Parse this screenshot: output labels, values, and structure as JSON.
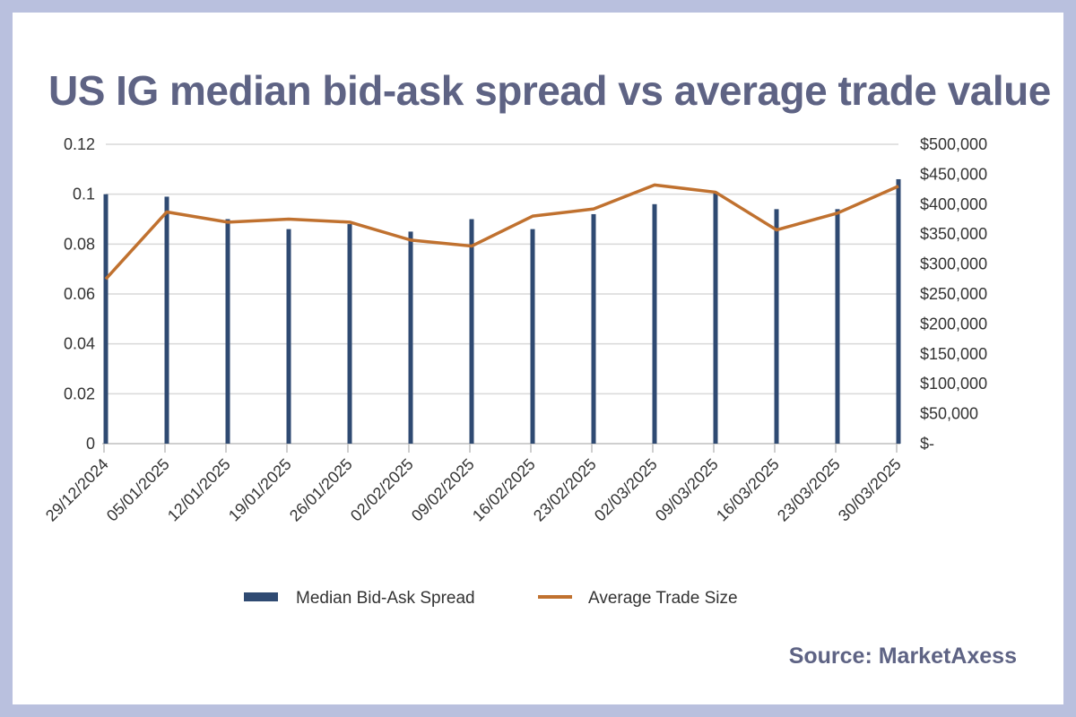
{
  "title": "US IG median bid-ask spread vs average trade value",
  "source": "Source: MarketAxess",
  "colors": {
    "background_border": "#b9c0de",
    "title_text": "#5e6384",
    "bar": "#2f4a72",
    "line": "#c0712f",
    "gridline": "#d9d9d9"
  },
  "chart_data": {
    "type": "bar+line",
    "categories": [
      "29/12/2024",
      "05/01/2025",
      "12/01/2025",
      "19/01/2025",
      "26/01/2025",
      "02/02/2025",
      "09/02/2025",
      "16/02/2025",
      "23/02/2025",
      "02/03/2025",
      "09/03/2025",
      "16/03/2025",
      "23/03/2025",
      "30/03/2025"
    ],
    "series": [
      {
        "name": "Median Bid-Ask Spread",
        "type": "bar",
        "axis": "left",
        "values": [
          0.1,
          0.099,
          0.09,
          0.086,
          0.088,
          0.085,
          0.09,
          0.086,
          0.092,
          0.096,
          0.101,
          0.094,
          0.094,
          0.106
        ]
      },
      {
        "name": "Average Trade Size",
        "type": "line",
        "axis": "right",
        "values": [
          275000,
          387000,
          370000,
          375000,
          370000,
          340000,
          330000,
          380000,
          392000,
          432000,
          420000,
          357000,
          385000,
          430000
        ]
      }
    ],
    "y_left": {
      "ylim": [
        0,
        0.12
      ],
      "ticks": [
        0,
        0.02,
        0.04,
        0.06,
        0.08,
        0.1,
        0.12
      ],
      "tick_labels": [
        "0",
        "0.02",
        "0.04",
        "0.06",
        "0.08",
        "0.1",
        "0.12"
      ]
    },
    "y_right": {
      "ylim": [
        0,
        500000
      ],
      "ticks": [
        0,
        50000,
        100000,
        150000,
        200000,
        250000,
        300000,
        350000,
        400000,
        450000,
        500000
      ],
      "tick_labels": [
        "$-",
        "$50,000",
        "$100,000",
        "$150,000",
        "$200,000",
        "$250,000",
        "$300,000",
        "$350,000",
        "$400,000",
        "$450,000",
        "$500,000"
      ]
    },
    "grid": true,
    "legend": "bottom-center"
  }
}
